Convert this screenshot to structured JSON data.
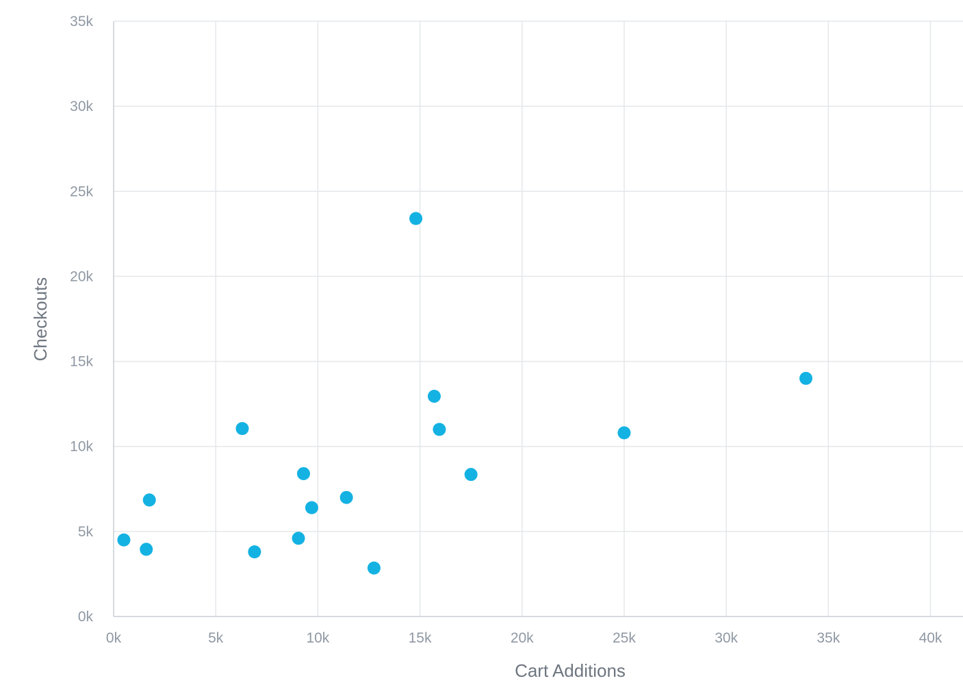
{
  "chart_data": {
    "type": "scatter",
    "title": "",
    "xlabel": "Cart Additions",
    "ylabel": "Checkouts",
    "xlim": [
      0,
      40000
    ],
    "ylim": [
      0,
      35000
    ],
    "x_ticks": [
      0,
      5000,
      10000,
      15000,
      20000,
      25000,
      30000,
      35000,
      40000
    ],
    "y_ticks": [
      0,
      5000,
      10000,
      15000,
      20000,
      25000,
      30000,
      35000
    ],
    "x_tick_labels": [
      "0k",
      "5k",
      "10k",
      "15k",
      "20k",
      "25k",
      "30k",
      "35k",
      "40k"
    ],
    "y_tick_labels": [
      "0k",
      "5k",
      "10k",
      "15k",
      "20k",
      "25k",
      "30k",
      "35k"
    ],
    "grid": true,
    "legend": "none",
    "color": "#14b2e2",
    "points": [
      {
        "x": 500,
        "y": 4500
      },
      {
        "x": 1600,
        "y": 3950
      },
      {
        "x": 1750,
        "y": 6850
      },
      {
        "x": 6300,
        "y": 11050
      },
      {
        "x": 6900,
        "y": 3800
      },
      {
        "x": 9050,
        "y": 4600
      },
      {
        "x": 9300,
        "y": 8400
      },
      {
        "x": 9700,
        "y": 6400
      },
      {
        "x": 11400,
        "y": 7000
      },
      {
        "x": 12750,
        "y": 2850
      },
      {
        "x": 14800,
        "y": 23400
      },
      {
        "x": 15700,
        "y": 12950
      },
      {
        "x": 15950,
        "y": 11000
      },
      {
        "x": 17500,
        "y": 8350
      },
      {
        "x": 25000,
        "y": 10800
      },
      {
        "x": 33900,
        "y": 14000
      }
    ]
  }
}
